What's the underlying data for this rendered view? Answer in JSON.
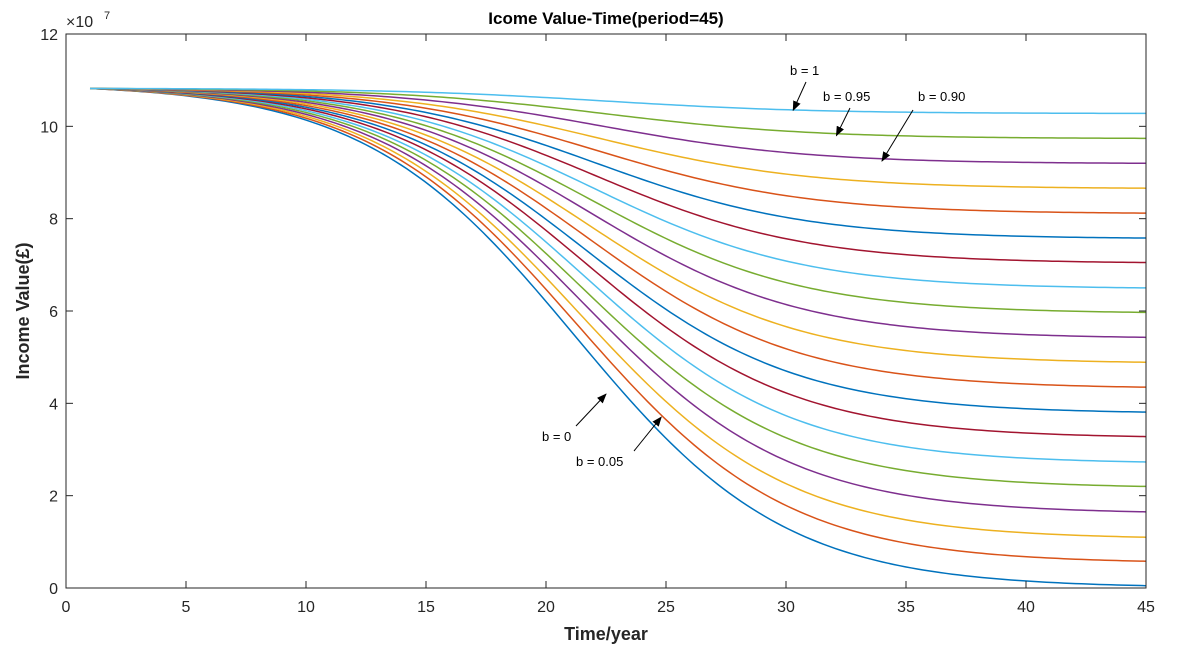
{
  "chart_data": {
    "type": "line",
    "title": "Icome Value-Time(period=45)",
    "xlabel": "Time/year",
    "ylabel": "Income Value(£)",
    "xlim": [
      0,
      45
    ],
    "ylim": [
      0,
      12
    ],
    "y_multiplier": "×10",
    "y_exponent": "7",
    "x_ticks": [
      0,
      5,
      10,
      15,
      20,
      25,
      30,
      35,
      40,
      45
    ],
    "y_ticks": [
      0,
      2,
      4,
      6,
      8,
      10,
      12
    ],
    "grid": false,
    "x_start": 1,
    "initial_value": 10.82,
    "b_values": [
      0,
      0.05,
      0.1,
      0.15,
      0.2,
      0.25,
      0.3,
      0.35,
      0.4,
      0.45,
      0.5,
      0.55,
      0.6,
      0.65,
      0.7,
      0.75,
      0.8,
      0.85,
      0.9,
      0.95,
      1
    ],
    "final_values": [
      0.05,
      0.58,
      1.1,
      1.65,
      2.2,
      2.73,
      3.28,
      3.81,
      4.35,
      4.89,
      5.43,
      5.97,
      6.5,
      7.05,
      7.58,
      8.12,
      8.66,
      9.2,
      9.74,
      10.28
    ],
    "series_colors": [
      "#0072BD",
      "#D95319",
      "#EDB120",
      "#7E2F8E",
      "#77AC30",
      "#4DBEEE",
      "#A2142F"
    ],
    "annotations": [
      {
        "text": "b = 1",
        "points_to": {
          "x": 30.3,
          "y": 10.35
        }
      },
      {
        "text": "b = 0.95",
        "points_to": {
          "x": 32.1,
          "y": 9.8
        }
      },
      {
        "text": "b = 0.90",
        "points_to": {
          "x": 34.0,
          "y": 9.25
        }
      },
      {
        "text": "b = 0",
        "points_to": {
          "x": 22.5,
          "y": 4.2
        }
      },
      {
        "text": "b = 0.05",
        "points_to": {
          "x": 24.8,
          "y": 3.7
        }
      }
    ]
  }
}
